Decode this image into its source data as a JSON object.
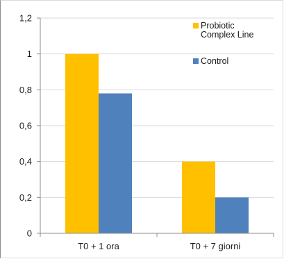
{
  "chart_data": {
    "type": "bar",
    "categories": [
      "T0 + 1 ora",
      "T0 + 7 giorni"
    ],
    "series": [
      {
        "name": "Probiotic Complex Line",
        "legend_lines": [
          "Probiotic",
          "Complex Line"
        ],
        "color": "#FFC000",
        "values": [
          1.0,
          0.4
        ]
      },
      {
        "name": "Control",
        "legend_lines": [
          "Control"
        ],
        "color": "#4F81BD",
        "values": [
          0.78,
          0.2
        ]
      }
    ],
    "ylim": [
      0,
      1.2
    ],
    "yticks": [
      0,
      0.2,
      0.4,
      0.6,
      0.8,
      1,
      1.2
    ],
    "ytick_labels": [
      "0",
      "0,2",
      "0,4",
      "0,6",
      "0,8",
      "1",
      "1,2"
    ],
    "grid": true,
    "legend_position": "top-right",
    "title": "",
    "xlabel": "",
    "ylabel": ""
  }
}
